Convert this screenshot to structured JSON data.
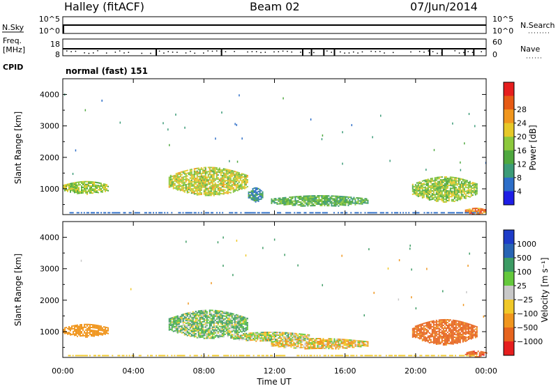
{
  "header": {
    "station": "Halley (fitACF)",
    "beam": "Beam 02",
    "date": "07/Jun/2014"
  },
  "sky_panel": {
    "left_label": "N.Sky",
    "right_label": "N.Search",
    "left_ticks": [
      "10^5",
      "10^0"
    ],
    "right_ticks": [
      "10^5",
      "10^0"
    ]
  },
  "freq_panel": {
    "left_label_1": "Freq.",
    "left_label_2": "[MHz]",
    "right_label": "Nave",
    "left_ticks": [
      "18",
      "8"
    ],
    "right_ticks": [
      "60",
      "0"
    ]
  },
  "cpid": {
    "label": "CPID",
    "value": "normal (fast) 151"
  },
  "x_axis": {
    "title": "Time UT",
    "ticks": [
      "00:00",
      "04:00",
      "08:00",
      "12:00",
      "16:00",
      "20:00",
      "00:00"
    ]
  },
  "power_panel": {
    "ylabel": "Slant Range [km]",
    "yticks": [
      "1000",
      "2000",
      "3000",
      "4000"
    ],
    "colorbar_title": "Power [dB]",
    "colorbar_ticks": [
      "4",
      "8",
      "12",
      "16",
      "20",
      "24",
      "28"
    ],
    "colors": [
      "#1e1ee6",
      "#2d6ec8",
      "#3c9b78",
      "#4fa83f",
      "#8cc83c",
      "#e6c828",
      "#f0961e",
      "#e65a14",
      "#e61e1e"
    ]
  },
  "velocity_panel": {
    "ylabel": "Slant Range [km]",
    "yticks": [
      "1000",
      "2000",
      "3000",
      "4000"
    ],
    "colorbar_title": "Velocity [m s⁻¹]",
    "colorbar_ticks": [
      "1000",
      "500",
      "100",
      "25",
      "−25",
      "−100",
      "−500",
      "−1000"
    ],
    "colors": [
      "#1e3cc8",
      "#2864b4",
      "#3c9b64",
      "#64c83c",
      "#c8c8c8",
      "#f0c828",
      "#f0961e",
      "#e6641e",
      "#e61e1e"
    ],
    "ground_scatter_color": "#c8c8c8"
  },
  "chart_data": {
    "type": "heatmap",
    "x_unit": "hours UT",
    "xlim": [
      0,
      24
    ],
    "ylim": [
      180,
      4500
    ],
    "y_unit": "km",
    "echo_regions_power": [
      {
        "t0": 0.0,
        "t1": 2.6,
        "r0": 850,
        "r1": 1250,
        "power": 18
      },
      {
        "t0": 6.0,
        "t1": 10.5,
        "r0": 800,
        "r1": 1700,
        "power": 20
      },
      {
        "t0": 10.5,
        "t1": 11.3,
        "r0": 600,
        "r1": 1050,
        "power": 9
      },
      {
        "t0": 11.8,
        "t1": 17.3,
        "r0": 450,
        "r1": 800,
        "power": 14
      },
      {
        "t0": 19.8,
        "t1": 23.5,
        "r0": 600,
        "r1": 1400,
        "power": 18
      },
      {
        "t0": 22.8,
        "t1": 24.0,
        "r0": 200,
        "r1": 400,
        "power": 28
      }
    ],
    "echo_regions_velocity": [
      {
        "t0": 0.0,
        "t1": 2.6,
        "r0": 850,
        "r1": 1250,
        "velocity": -300
      },
      {
        "t0": 6.0,
        "t1": 10.5,
        "r0": 800,
        "r1": 1700,
        "velocity": 80
      },
      {
        "t0": 9.5,
        "t1": 14.0,
        "r0": 700,
        "r1": 1000,
        "velocity": 0
      },
      {
        "t0": 11.8,
        "t1": 17.3,
        "r0": 450,
        "r1": 800,
        "velocity": -80
      },
      {
        "t0": 19.8,
        "t1": 23.5,
        "r0": 600,
        "r1": 1400,
        "velocity": -600
      },
      {
        "t0": 22.8,
        "t1": 24.0,
        "r0": 200,
        "r1": 400,
        "velocity": -900
      }
    ],
    "nave_drop_times_hours": [
      5.3,
      9.0,
      13.6,
      14.1,
      14.8,
      15.4,
      20.8,
      21.5,
      22.8,
      23.3
    ]
  }
}
